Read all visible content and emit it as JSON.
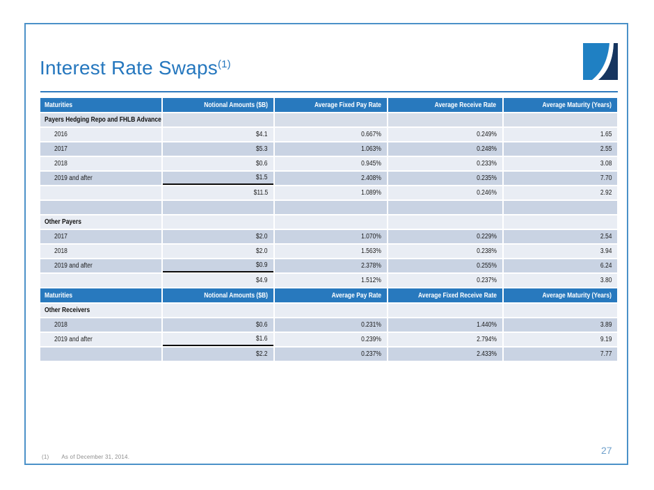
{
  "slide": {
    "title": "Interest Rate Swaps",
    "title_note": "(1)",
    "page_number": "27",
    "footnote": {
      "marker": "(1)",
      "text": "As of December 31, 2014."
    }
  },
  "colors": {
    "accent": "#2577BE",
    "rule": "#2E79BC",
    "frame_border": "#4A90C8",
    "header_bg": "#2879BE",
    "row_light": "#E9EDF4",
    "row_dark": "#C9D3E3",
    "section_bg": "#D7DEE9",
    "footnote_gray": "#8C8C8C",
    "page_num": "#6FA0CB",
    "logo_light": "#1F80C3",
    "logo_dark": "#16355F"
  },
  "table": {
    "rows": [
      {
        "type": "header",
        "cells": [
          "Maturities",
          "Notional Amounts ($B)",
          "Average Fixed Pay Rate",
          "Average Receive Rate",
          "Average Maturity (Years)"
        ]
      },
      {
        "type": "section",
        "shade": "section",
        "cells": [
          "Payers Hedging Repo and FHLB Advances",
          "",
          "",
          "",
          ""
        ]
      },
      {
        "type": "data",
        "shade": "light",
        "cells": [
          "2016",
          "$4.1",
          "0.667%",
          "0.249%",
          "1.65"
        ]
      },
      {
        "type": "data",
        "shade": "dark",
        "cells": [
          "2017",
          "$5.3",
          "1.063%",
          "0.248%",
          "2.55"
        ]
      },
      {
        "type": "data",
        "shade": "light",
        "cells": [
          "2018",
          "$0.6",
          "0.945%",
          "0.233%",
          "3.08"
        ]
      },
      {
        "type": "data",
        "shade": "dark",
        "underline": true,
        "cells": [
          "2019 and after",
          "$1.5",
          "2.408%",
          "0.235%",
          "7.70"
        ]
      },
      {
        "type": "total",
        "shade": "light",
        "cells": [
          "",
          "$11.5",
          "1.089%",
          "0.246%",
          "2.92"
        ]
      },
      {
        "type": "empty",
        "shade": "dark",
        "cells": [
          "",
          "",
          "",
          "",
          ""
        ]
      },
      {
        "type": "section",
        "shade": "light",
        "cells": [
          "Other Payers",
          "",
          "",
          "",
          ""
        ]
      },
      {
        "type": "data",
        "shade": "dark",
        "cells": [
          "2017",
          "$2.0",
          "1.070%",
          "0.229%",
          "2.54"
        ]
      },
      {
        "type": "data",
        "shade": "light",
        "cells": [
          "2018",
          "$2.0",
          "1.563%",
          "0.238%",
          "3.94"
        ]
      },
      {
        "type": "data",
        "shade": "dark",
        "underline": true,
        "cells": [
          "2019 and after",
          "$0.9",
          "2.378%",
          "0.255%",
          "6.24"
        ]
      },
      {
        "type": "total",
        "shade": "light",
        "cells": [
          "",
          "$4.9",
          "1.512%",
          "0.237%",
          "3.80"
        ]
      },
      {
        "type": "header",
        "cells": [
          "Maturities",
          "Notional Amounts ($B)",
          "Average Pay Rate",
          "Average Fixed Receive Rate",
          "Average Maturity (Years)"
        ]
      },
      {
        "type": "section",
        "shade": "light",
        "cells": [
          "Other Receivers",
          "",
          "",
          "",
          ""
        ]
      },
      {
        "type": "data",
        "shade": "dark",
        "cells": [
          "2018",
          "$0.6",
          "0.231%",
          "1.440%",
          "3.89"
        ]
      },
      {
        "type": "data",
        "shade": "light",
        "underline": true,
        "cells": [
          "2019 and after",
          "$1.6",
          "0.239%",
          "2.794%",
          "9.19"
        ]
      },
      {
        "type": "total",
        "shade": "dark",
        "cells": [
          "",
          "$2.2",
          "0.237%",
          "2.433%",
          "7.77"
        ]
      }
    ]
  }
}
